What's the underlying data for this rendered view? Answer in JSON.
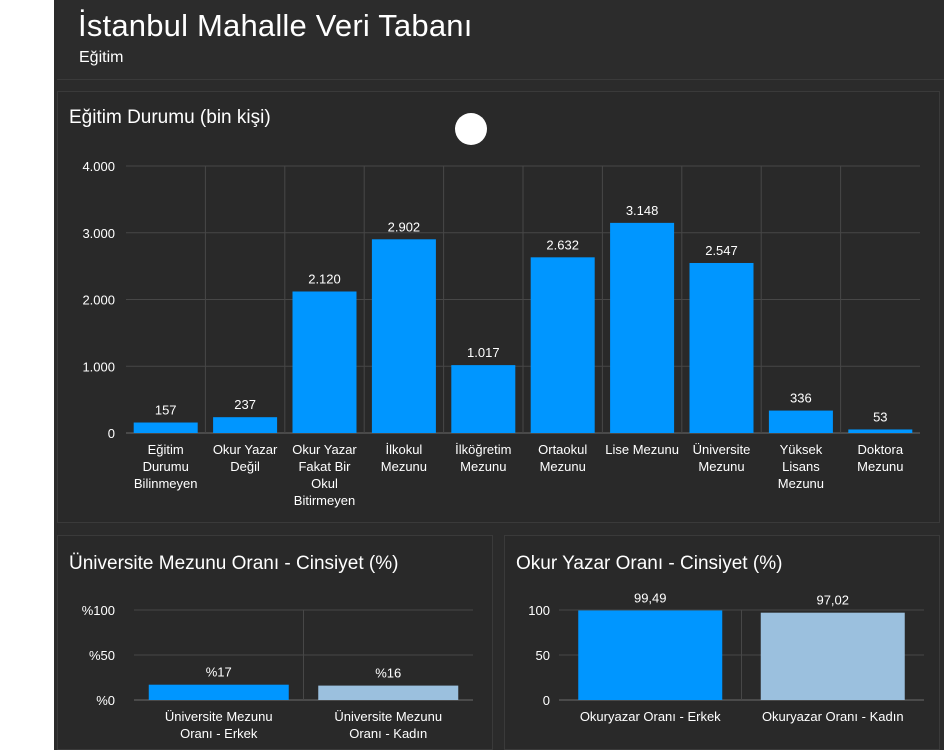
{
  "header": {
    "title": "İstanbul Mahalle Veri Tabanı",
    "subtitle": "Eğitim"
  },
  "colors": {
    "bar_primary": "#0096ff",
    "bar_secondary": "#9bc0de",
    "grid": "#474747",
    "axis": "#6a6a6a",
    "text": "#ffffff"
  },
  "chart_data": [
    {
      "type": "bar",
      "title": "Eğitim Durumu (bin kişi)",
      "categories": [
        [
          "Eğitim",
          "Durumu",
          "Bilinmeyen"
        ],
        [
          "Okur Yazar",
          "Değil"
        ],
        [
          "Okur Yazar",
          "Fakat Bir",
          "Okul",
          "Bitirmeyen"
        ],
        [
          "İlkokul",
          "Mezunu"
        ],
        [
          "İlköğretim",
          "Mezunu"
        ],
        [
          "Ortaokul",
          "Mezunu"
        ],
        [
          "Lise Mezunu"
        ],
        [
          "Üniversite",
          "Mezunu"
        ],
        [
          "Yüksek",
          "Lisans",
          "Mezunu"
        ],
        [
          "Doktora",
          "Mezunu"
        ]
      ],
      "values": [
        157,
        237,
        2120,
        2902,
        1017,
        2632,
        3148,
        2547,
        336,
        53
      ],
      "value_labels": [
        "157",
        "237",
        "2.120",
        "2.902",
        "1.017",
        "2.632",
        "3.148",
        "2.547",
        "336",
        "53"
      ],
      "ylim": [
        0,
        4000
      ],
      "yticks": [
        0,
        1000,
        2000,
        3000,
        4000
      ],
      "ytick_labels": [
        "0",
        "1.000",
        "2.000",
        "3.000",
        "4.000"
      ],
      "grid": true,
      "xlabel": "",
      "ylabel": ""
    },
    {
      "type": "bar",
      "title": "Üniversite Mezunu Oranı - Cinsiyet (%)",
      "categories": [
        [
          "Üniversite Mezunu",
          "Oranı - Erkek"
        ],
        [
          "Üniversite Mezunu",
          "Oranı - Kadın"
        ]
      ],
      "values": [
        17,
        16
      ],
      "value_labels": [
        "%17",
        "%16"
      ],
      "ylim": [
        0,
        100
      ],
      "yticks": [
        0,
        50,
        100
      ],
      "ytick_labels": [
        "%0",
        "%50",
        "%100"
      ],
      "grid": true,
      "xlabel": "",
      "ylabel": ""
    },
    {
      "type": "bar",
      "title": "Okur Yazar Oranı - Cinsiyet (%)",
      "categories": [
        [
          "Okuryazar Oranı - Erkek"
        ],
        [
          "Okuryazar Oranı - Kadın"
        ]
      ],
      "values": [
        99.49,
        97.02
      ],
      "value_labels": [
        "99,49",
        "97,02"
      ],
      "ylim": [
        0,
        100
      ],
      "yticks": [
        0,
        50,
        100
      ],
      "ytick_labels": [
        "0",
        "50",
        "100"
      ],
      "grid": true,
      "xlabel": "",
      "ylabel": ""
    }
  ]
}
